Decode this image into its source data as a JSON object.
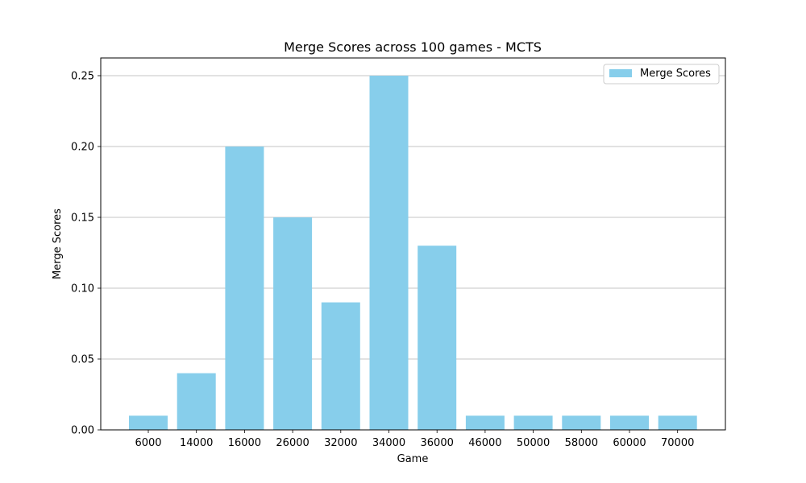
{
  "colors": {
    "bar": "#87CEEB",
    "grid": "#b0b0b0",
    "axis": "#000000",
    "legend_border": "#cccccc"
  },
  "chart_data": {
    "type": "bar",
    "title": "Merge Scores across 100 games - MCTS",
    "xlabel": "Game",
    "ylabel": "Merge Scores",
    "categories": [
      "6000",
      "14000",
      "16000",
      "26000",
      "32000",
      "34000",
      "36000",
      "46000",
      "50000",
      "58000",
      "60000",
      "70000"
    ],
    "series": [
      {
        "name": "Merge Scores",
        "values": [
          0.01,
          0.04,
          0.2,
          0.15,
          0.09,
          0.25,
          0.13,
          0.01,
          0.01,
          0.01,
          0.01,
          0.01
        ]
      }
    ],
    "ylim": [
      0,
      0.2625
    ],
    "yticks": [
      "0.00",
      "0.05",
      "0.10",
      "0.15",
      "0.20",
      "0.25"
    ],
    "grid": "y-axis",
    "legend_position": "top-right"
  }
}
